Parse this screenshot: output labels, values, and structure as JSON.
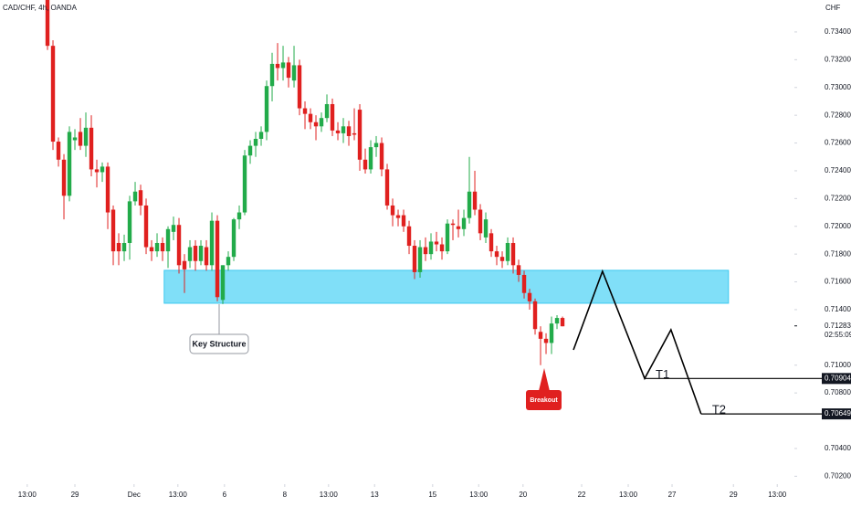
{
  "chart_data": {
    "type": "candlestick",
    "title": "CAD/CHF, 4h, OANDA",
    "currency": "CHF",
    "up_color": "#22ab4a",
    "down_color": "#e0201f",
    "x": [
      0,
      1,
      2,
      3,
      4,
      5,
      6,
      7,
      8,
      9,
      10,
      11,
      12,
      13,
      14,
      15,
      16,
      17,
      18,
      19,
      20,
      21,
      22,
      23,
      24,
      25,
      26,
      27,
      28,
      29,
      30,
      31,
      32,
      33,
      34,
      35,
      36,
      37,
      38,
      39,
      40,
      41,
      42,
      43,
      44,
      45,
      46,
      47,
      48,
      49,
      50,
      51,
      52,
      53,
      54,
      55,
      56,
      57,
      58,
      59,
      60,
      61,
      62,
      63,
      64,
      65,
      66,
      67,
      68,
      69,
      70,
      71,
      72,
      73,
      74,
      75,
      76,
      77,
      78,
      79,
      80,
      81,
      82,
      83,
      84,
      85,
      86,
      87,
      88,
      89,
      90,
      91,
      92,
      93,
      94
    ],
    "open": [
      0.7363,
      0.733,
      0.7261,
      0.7248,
      0.7222,
      0.7262,
      0.7268,
      0.7258,
      0.7271,
      0.7241,
      0.7239,
      0.7243,
      0.7212,
      0.7188,
      0.7182,
      0.7188,
      0.7218,
      0.7226,
      0.7215,
      0.7185,
      0.7182,
      0.7188,
      0.7182,
      0.7196,
      0.7201,
      0.7175,
      0.7175,
      0.7186,
      0.7175,
      0.7185,
      0.7172,
      0.7204,
      0.7147,
      0.7172,
      0.7178,
      0.7205,
      0.721,
      0.7251,
      0.7258,
      0.7263,
      0.7268,
      0.7301,
      0.7317,
      0.7314,
      0.7318,
      0.7305,
      0.7316,
      0.7285,
      0.7281,
      0.7275,
      0.7272,
      0.7278,
      0.7288,
      0.7269,
      0.7267,
      0.7272,
      0.7267,
      0.7284,
      0.7248,
      0.7241,
      0.7257,
      0.726,
      0.7241,
      0.7215,
      0.7208,
      0.7208,
      0.72,
      0.7186,
      0.7167,
      0.7185,
      0.718,
      0.7189,
      0.7187,
      0.7182,
      0.7202,
      0.72,
      0.7198,
      0.7206,
      0.7225,
      0.7212,
      0.7192,
      0.7195,
      0.7182,
      0.7178,
      0.7175,
      0.7188,
      0.7172,
      0.7165,
      0.7152,
      0.7146,
      0.7124,
      0.7119,
      0.7116,
      0.713,
      0.7134
    ],
    "high": [
      0.7363,
      0.7334,
      0.7264,
      0.7252,
      0.7272,
      0.727,
      0.7278,
      0.7282,
      0.728,
      0.7248,
      0.7246,
      0.7246,
      0.7215,
      0.7195,
      0.7194,
      0.7222,
      0.7232,
      0.723,
      0.722,
      0.719,
      0.7195,
      0.7192,
      0.72,
      0.7207,
      0.7206,
      0.718,
      0.719,
      0.719,
      0.719,
      0.719,
      0.721,
      0.7208,
      0.7172,
      0.7182,
      0.7206,
      0.7215,
      0.7255,
      0.7262,
      0.7268,
      0.7272,
      0.7305,
      0.7325,
      0.7332,
      0.733,
      0.7322,
      0.733,
      0.732,
      0.729,
      0.7285,
      0.728,
      0.7282,
      0.7295,
      0.7292,
      0.7275,
      0.7278,
      0.7276,
      0.7285,
      0.7288,
      0.7256,
      0.7262,
      0.7265,
      0.7264,
      0.7245,
      0.722,
      0.7212,
      0.7212,
      0.7204,
      0.719,
      0.719,
      0.7192,
      0.7195,
      0.7196,
      0.7192,
      0.7205,
      0.7205,
      0.7212,
      0.7212,
      0.725,
      0.724,
      0.7216,
      0.721,
      0.7198,
      0.7186,
      0.7182,
      0.7192,
      0.7192,
      0.7176,
      0.7168,
      0.7155,
      0.7148,
      0.7128,
      0.7123,
      0.7135,
      0.7136,
      0.7135
    ],
    "low": [
      0.7327,
      0.7255,
      0.7243,
      0.7205,
      0.7218,
      0.7255,
      0.7255,
      0.725,
      0.7236,
      0.7228,
      0.7232,
      0.7198,
      0.7172,
      0.7172,
      0.7175,
      0.7176,
      0.7215,
      0.7208,
      0.718,
      0.7175,
      0.7178,
      0.7175,
      0.717,
      0.719,
      0.7166,
      0.7152,
      0.717,
      0.7168,
      0.7172,
      0.7168,
      0.7168,
      0.7146,
      0.7144,
      0.7168,
      0.7175,
      0.7198,
      0.7208,
      0.7245,
      0.725,
      0.7258,
      0.7262,
      0.729,
      0.7305,
      0.7305,
      0.73,
      0.73,
      0.728,
      0.727,
      0.727,
      0.7262,
      0.7268,
      0.7275,
      0.7265,
      0.7262,
      0.726,
      0.7258,
      0.7262,
      0.724,
      0.7238,
      0.7238,
      0.725,
      0.7236,
      0.7212,
      0.72,
      0.72,
      0.7196,
      0.718,
      0.7162,
      0.7163,
      0.7175,
      0.7176,
      0.7182,
      0.7176,
      0.718,
      0.719,
      0.7192,
      0.7193,
      0.7202,
      0.7208,
      0.719,
      0.7188,
      0.7178,
      0.7172,
      0.717,
      0.7172,
      0.7166,
      0.716,
      0.7148,
      0.714,
      0.7122,
      0.71,
      0.7108,
      0.7108,
      0.7126,
      0.7128
    ],
    "close": [
      0.733,
      0.7261,
      0.7248,
      0.7222,
      0.7268,
      0.7264,
      0.7258,
      0.7271,
      0.7241,
      0.7239,
      0.7243,
      0.721,
      0.7182,
      0.7182,
      0.7188,
      0.7218,
      0.7225,
      0.7215,
      0.7185,
      0.7182,
      0.7188,
      0.7182,
      0.7198,
      0.7201,
      0.7172,
      0.7169,
      0.7185,
      0.7175,
      0.7186,
      0.7172,
      0.7204,
      0.7149,
      0.7172,
      0.7178,
      0.7205,
      0.721,
      0.7251,
      0.7258,
      0.7263,
      0.7268,
      0.7301,
      0.7317,
      0.7314,
      0.7318,
      0.7307,
      0.7316,
      0.7285,
      0.7281,
      0.7275,
      0.7272,
      0.7278,
      0.7288,
      0.7269,
      0.7267,
      0.7272,
      0.7265,
      0.7266,
      0.7248,
      0.7241,
      0.7257,
      0.726,
      0.7241,
      0.7215,
      0.7208,
      0.7206,
      0.72,
      0.7186,
      0.7167,
      0.7185,
      0.718,
      0.7189,
      0.7187,
      0.7182,
      0.7202,
      0.7201,
      0.7198,
      0.7206,
      0.7225,
      0.7212,
      0.7195,
      0.7205,
      0.7182,
      0.7178,
      0.7175,
      0.7188,
      0.7172,
      0.7165,
      0.7152,
      0.7146,
      0.7126,
      0.7119,
      0.7116,
      0.713,
      0.7134,
      0.7128
    ],
    "xlim": [
      -8.67,
      136.33
    ],
    "ylim": [
      0.70143,
      0.7363
    ],
    "xticks": [
      {
        "value": -3.7,
        "label": "13:00"
      },
      {
        "value": 5,
        "label": "29"
      },
      {
        "value": 15.8,
        "label": "Dec"
      },
      {
        "value": 23.8,
        "label": "13:00"
      },
      {
        "value": 32.3,
        "label": "6"
      },
      {
        "value": 43.3,
        "label": "8"
      },
      {
        "value": 51.3,
        "label": "13:00"
      },
      {
        "value": 59.7,
        "label": "13"
      },
      {
        "value": 70.3,
        "label": "15"
      },
      {
        "value": 78.7,
        "label": "13:00"
      },
      {
        "value": 86.8,
        "label": "20"
      },
      {
        "value": 97.5,
        "label": "22"
      },
      {
        "value": 106,
        "label": "13:00"
      },
      {
        "value": 114,
        "label": "27"
      },
      {
        "value": 125.2,
        "label": "29"
      },
      {
        "value": 133.2,
        "label": "13:00"
      }
    ],
    "yticks": [
      {
        "value": 0.734,
        "label": "0.73400"
      },
      {
        "value": 0.732,
        "label": "0.73200"
      },
      {
        "value": 0.73,
        "label": "0.73000"
      },
      {
        "value": 0.728,
        "label": "0.72800"
      },
      {
        "value": 0.726,
        "label": "0.72600"
      },
      {
        "value": 0.724,
        "label": "0.72400"
      },
      {
        "value": 0.722,
        "label": "0.72200"
      },
      {
        "value": 0.72,
        "label": "0.72000"
      },
      {
        "value": 0.718,
        "label": "0.71800"
      },
      {
        "value": 0.716,
        "label": "0.71600"
      },
      {
        "value": 0.714,
        "label": "0.71400"
      },
      {
        "value": 0.71,
        "label": "0.71000"
      },
      {
        "value": 0.708,
        "label": "0.70800"
      },
      {
        "value": 0.704,
        "label": "0.70400"
      },
      {
        "value": 0.702,
        "label": "0.70200"
      }
    ],
    "zone": {
      "x": [
        21.3,
        124.3
      ],
      "y": [
        0.71446,
        0.71683
      ],
      "color": "#80dff8"
    },
    "projection": {
      "x": [
        96,
        101.3,
        109,
        113.8,
        119.3
      ],
      "y": [
        0.7111,
        0.71676,
        0.70904,
        0.71255,
        0.70649
      ]
    },
    "targets": [
      {
        "name": "T1",
        "x": 109,
        "value": 0.70904,
        "value_label": "0.70904"
      },
      {
        "name": "T2",
        "x": 119.3,
        "value": 0.70649,
        "value_label": "0.70649"
      }
    ],
    "last_price": {
      "value": 0.71283,
      "label": "0.71283"
    },
    "countdown": "02:55:09",
    "annotations": [
      "Key Structure",
      "Breakout"
    ]
  }
}
